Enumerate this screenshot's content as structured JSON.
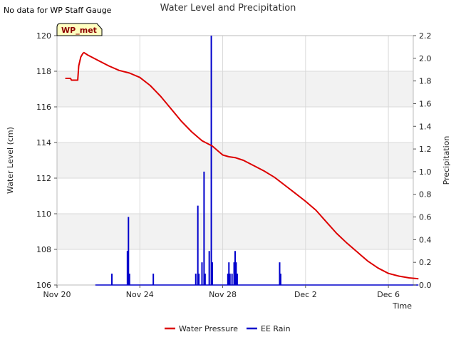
{
  "chart_data": {
    "type": "line",
    "title": "Water Level and Precipitation",
    "note": "No data for WP Staff Gauge",
    "badge": "WP_met",
    "xlabel": "Time",
    "ylabel_left": "Water Level (cm)",
    "ylabel_right": "Precipitation",
    "xlim": [
      0,
      17.2
    ],
    "ylim_left": [
      106,
      120
    ],
    "ylim_right": [
      0,
      2.2
    ],
    "x_ticks": [
      {
        "x": 0,
        "label": "Nov 20"
      },
      {
        "x": 4,
        "label": "Nov 24"
      },
      {
        "x": 8,
        "label": "Nov 28"
      },
      {
        "x": 12,
        "label": "Dec 2"
      },
      {
        "x": 16,
        "label": "Dec 6"
      }
    ],
    "y_ticks_left": [
      "106",
      "108",
      "110",
      "112",
      "114",
      "116",
      "118",
      "120"
    ],
    "y_ticks_right": [
      "0.0",
      "0.2",
      "0.4",
      "0.6",
      "0.8",
      "1.0",
      "1.2",
      "1.4",
      "1.6",
      "1.8",
      "2.0",
      "2.2"
    ],
    "grid": true,
    "legend_position": "bottom-center",
    "series": [
      {
        "name": "Water Pressure",
        "axis": "left",
        "color": "#dd0000",
        "x": [
          0.4,
          0.65,
          0.7,
          1.0,
          1.05,
          1.15,
          1.25,
          1.3,
          1.5,
          2.0,
          2.5,
          3.0,
          3.5,
          4.0,
          4.5,
          5.0,
          5.5,
          6.0,
          6.5,
          7.0,
          7.5,
          7.8,
          8.0,
          8.3,
          8.6,
          9.0,
          9.5,
          10.0,
          10.5,
          11.0,
          11.5,
          12.0,
          12.5,
          13.0,
          13.5,
          14.0,
          14.5,
          15.0,
          15.5,
          16.0,
          16.5,
          17.0,
          17.45
        ],
        "y": [
          117.6,
          117.6,
          117.5,
          117.5,
          118.3,
          118.8,
          119.0,
          119.05,
          118.9,
          118.6,
          118.3,
          118.05,
          117.9,
          117.65,
          117.2,
          116.6,
          115.9,
          115.2,
          114.6,
          114.1,
          113.8,
          113.5,
          113.3,
          113.2,
          113.15,
          113.0,
          112.7,
          112.4,
          112.05,
          111.6,
          111.15,
          110.7,
          110.2,
          109.55,
          108.9,
          108.35,
          107.85,
          107.35,
          106.95,
          106.65,
          106.5,
          106.4,
          106.35
        ]
      },
      {
        "name": "EE Rain",
        "axis": "right",
        "color": "#0000cc",
        "baseline_x": [
          1.85,
          17.45
        ],
        "spikes": [
          {
            "x": 2.65,
            "v": 0.1
          },
          {
            "x": 3.4,
            "v": 0.3
          },
          {
            "x": 3.45,
            "v": 0.6
          },
          {
            "x": 3.5,
            "v": 0.1
          },
          {
            "x": 4.65,
            "v": 0.1
          },
          {
            "x": 6.7,
            "v": 0.1
          },
          {
            "x": 6.8,
            "v": 0.7
          },
          {
            "x": 6.85,
            "v": 0.1
          },
          {
            "x": 7.0,
            "v": 0.2
          },
          {
            "x": 7.1,
            "v": 1.0
          },
          {
            "x": 7.15,
            "v": 0.1
          },
          {
            "x": 7.35,
            "v": 0.3
          },
          {
            "x": 7.45,
            "v": 2.2
          },
          {
            "x": 7.5,
            "v": 0.2
          },
          {
            "x": 8.25,
            "v": 0.1
          },
          {
            "x": 8.3,
            "v": 0.2
          },
          {
            "x": 8.35,
            "v": 0.1
          },
          {
            "x": 8.45,
            "v": 0.1
          },
          {
            "x": 8.55,
            "v": 0.2
          },
          {
            "x": 8.6,
            "v": 0.3
          },
          {
            "x": 8.65,
            "v": 0.2
          },
          {
            "x": 8.7,
            "v": 0.1
          },
          {
            "x": 10.75,
            "v": 0.2
          },
          {
            "x": 10.8,
            "v": 0.1
          }
        ]
      }
    ]
  }
}
